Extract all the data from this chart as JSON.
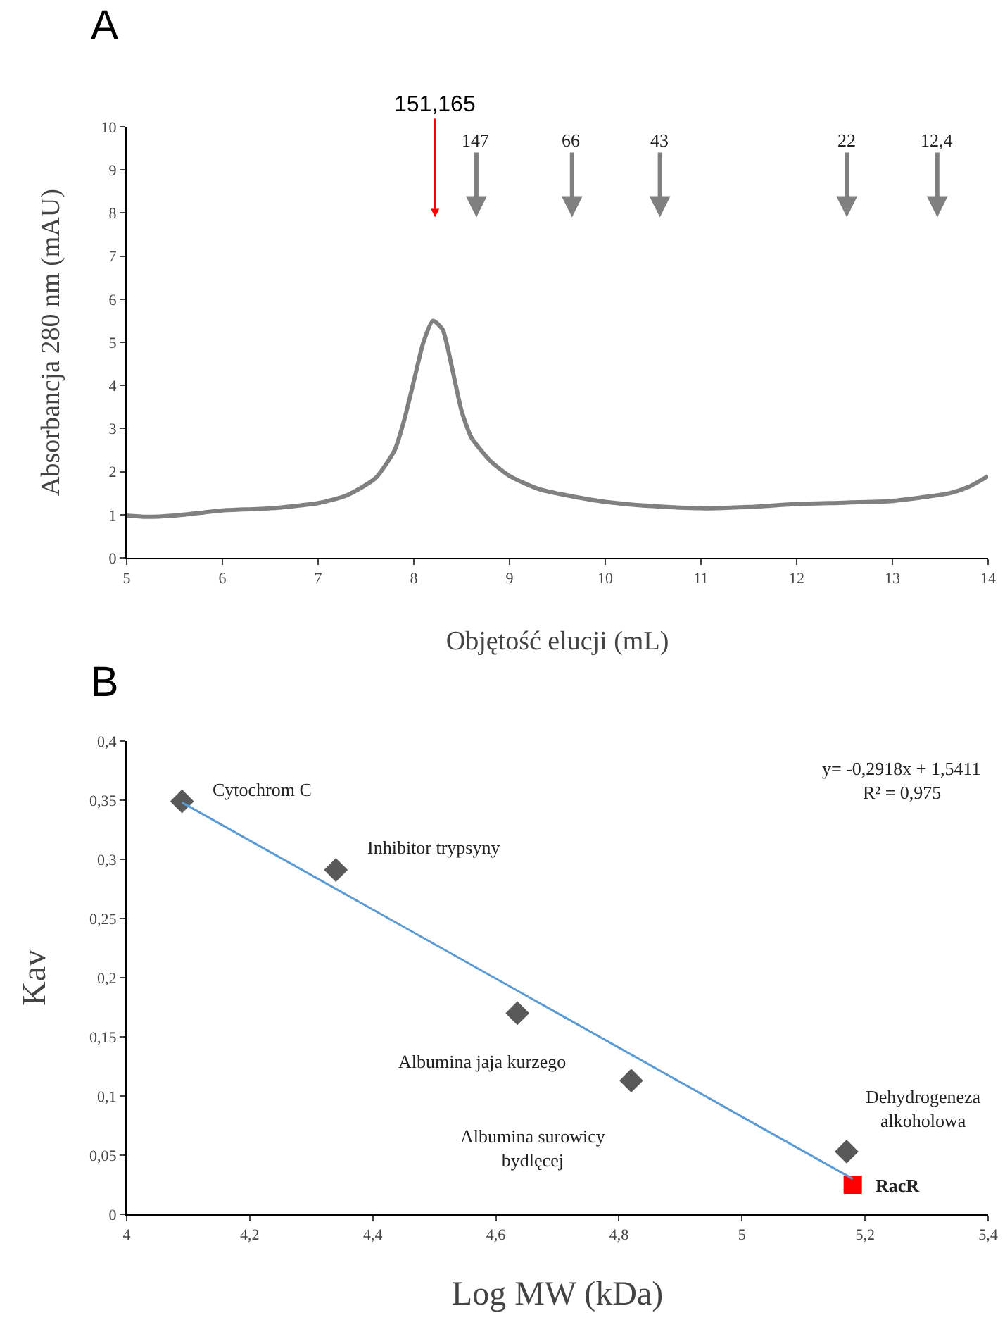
{
  "chart_data": [
    {
      "type": "line",
      "title": "A",
      "xlabel": "Objętość elucji (mL)",
      "ylabel": "Absorbancja 280 nm (mAU)",
      "x": [
        5.0,
        5.2,
        5.5,
        5.8,
        6.0,
        6.5,
        7.0,
        7.3,
        7.6,
        7.8,
        7.9,
        8.0,
        8.1,
        8.2,
        8.3,
        8.4,
        8.5,
        8.6,
        8.8,
        9.0,
        9.3,
        9.6,
        10.0,
        10.5,
        11.0,
        11.5,
        12.0,
        12.5,
        13.0,
        13.3,
        13.6,
        13.8,
        14.0
      ],
      "series": [
        {
          "color": "#808080",
          "values": [
            0.98,
            0.95,
            0.98,
            1.05,
            1.1,
            1.15,
            1.27,
            1.45,
            1.85,
            2.5,
            3.2,
            4.1,
            5.0,
            5.5,
            5.3,
            4.4,
            3.4,
            2.8,
            2.25,
            1.9,
            1.6,
            1.45,
            1.3,
            1.2,
            1.15,
            1.18,
            1.25,
            1.28,
            1.32,
            1.4,
            1.5,
            1.65,
            1.9
          ]
        }
      ],
      "xlim": [
        5,
        14
      ],
      "xticks": [
        5,
        6,
        7,
        8,
        9,
        10,
        11,
        12,
        13,
        14
      ],
      "ylim": [
        0,
        10
      ],
      "yticks": [
        0,
        1,
        2,
        3,
        4,
        5,
        6,
        7,
        8,
        9,
        10
      ],
      "grid": false,
      "marker": "none",
      "line_style": "solid",
      "annotations": [
        "151,165",
        "147",
        "66",
        "43",
        "22",
        "12,4"
      ]
    },
    {
      "type": "scatter",
      "title": "B",
      "xlabel": "Log MW (kDa)",
      "ylabel": "Kav",
      "series": [
        {
          "color": "#595959",
          "marker": "diamond",
          "x": [
            4.09,
            4.34,
            4.635,
            4.82,
            5.17
          ],
          "values": [
            0.349,
            0.291,
            0.17,
            0.113,
            0.053
          ]
        },
        {
          "color": "#ff0000",
          "marker": "square",
          "x": [
            5.18
          ],
          "values": [
            0.025
          ]
        },
        {
          "type": "line",
          "color": "#5b9bd5",
          "x": [
            4.09,
            5.18
          ],
          "values": [
            0.348,
            0.03
          ]
        }
      ],
      "xlim": [
        4,
        5.4
      ],
      "xticks": [
        4,
        {
          "value": 4.2,
          "label": "4,2"
        },
        {
          "value": 4.4,
          "label": "4,4"
        },
        {
          "value": 4.6,
          "label": "4,6"
        },
        {
          "value": 4.8,
          "label": "4,8"
        },
        5,
        {
          "value": 5.2,
          "label": "5,2"
        },
        {
          "value": 5.4,
          "label": "5,4"
        }
      ],
      "ylim": [
        0,
        0.4
      ],
      "yticks": [
        0,
        {
          "value": 0.05,
          "label": "0,05"
        },
        {
          "value": 0.1,
          "label": "0,1"
        },
        {
          "value": 0.15,
          "label": "0,15"
        },
        {
          "value": 0.2,
          "label": "0,2"
        },
        {
          "value": 0.25,
          "label": "0,25"
        },
        {
          "value": 0.3,
          "label": "0,3"
        },
        {
          "value": 0.35,
          "label": "0,35"
        },
        {
          "value": 0.4,
          "label": "0,4"
        }
      ],
      "grid": false,
      "annotations": [
        {
          "text": "Cytochrom C",
          "x": 4.09,
          "y": 0.349
        },
        {
          "text": "Inhibitor trypsyny",
          "x": 4.34,
          "y": 0.291
        },
        {
          "text": "Albumina jaja kurzego",
          "x": 4.635,
          "y": 0.17
        },
        {
          "text": "Albumina surowicy\nbydlęcej",
          "x": 4.82,
          "y": 0.113
        },
        {
          "text": "Dehydrogeneza\nalkoholowa",
          "x": 5.17,
          "y": 0.053
        },
        {
          "text": "RacR",
          "x": 5.18,
          "y": 0.025
        },
        "y= -0,2918x + 1,5411",
        "R² = 0,975"
      ]
    }
  ]
}
